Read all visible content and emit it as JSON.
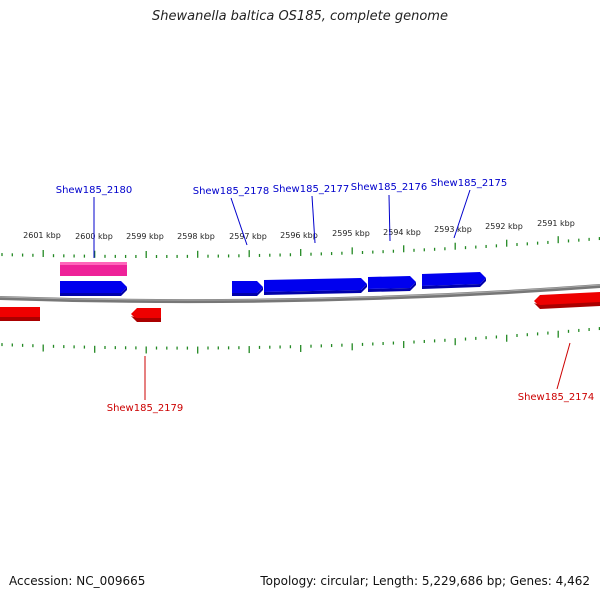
{
  "title": "Shewanella baltica OS185, complete genome",
  "footer": {
    "accession": "Accession: NC_009665",
    "summary": "Topology: circular; Length: 5,229,686 bp; Genes: 4,462"
  },
  "colors": {
    "forward": "#0000ee",
    "reverse": "#ee0000",
    "rna": "#ee2299",
    "tick": "#228822",
    "backbone": "#777777"
  },
  "scale_labels": [
    "2601 kbp",
    "2600 kbp",
    "2599 kbp",
    "2598 kbp",
    "2597 kbp",
    "2596 kbp",
    "2595 kbp",
    "2594 kbp",
    "2593 kbp",
    "2592 kbp",
    "2591 kbp"
  ],
  "genes_forward": [
    "Shew185_2180",
    "Shew185_2178",
    "Shew185_2177",
    "Shew185_2176",
    "Shew185_2175"
  ],
  "genes_reverse": [
    "Shew185_2179",
    "Shew185_2174"
  ]
}
